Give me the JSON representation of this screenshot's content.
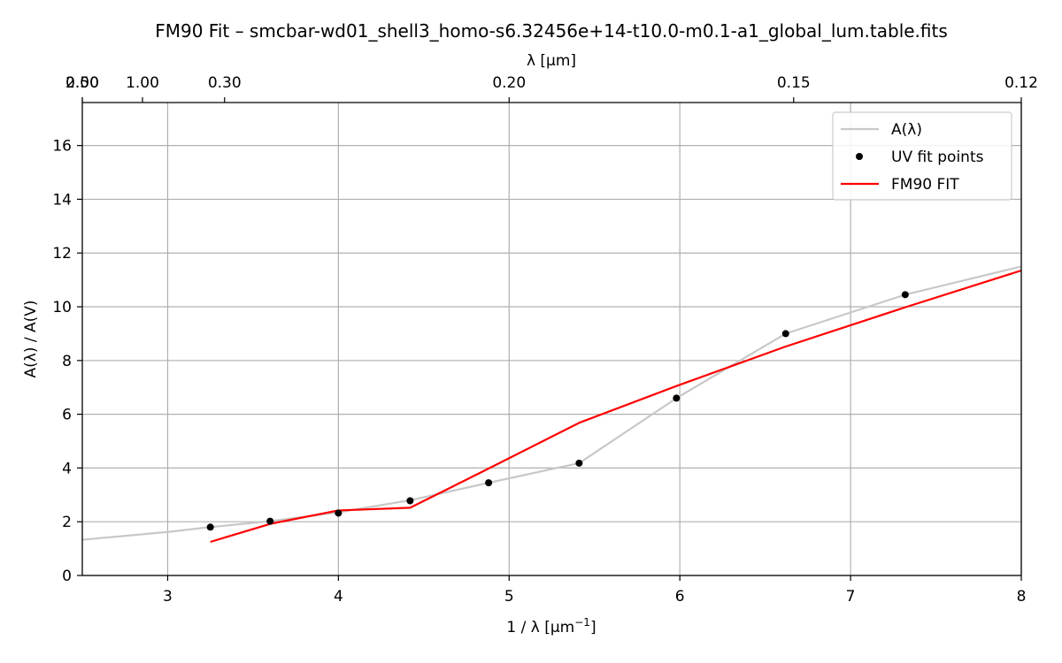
{
  "chart_data": {
    "type": "line",
    "title": "FM90 Fit – smcbar-wd01_shell3_homo-s6.32456e+14-t10.0-m0.1-a1_global_lum.table.fits",
    "xlabel": "1 / λ [μm",
    "xlabel_sup": "−1",
    "xlabel_end": "]",
    "ylabel": "A(λ) / A(V)",
    "top_xlabel": "λ [μm]",
    "xlim": [
      2.5,
      8
    ],
    "ylim": [
      0,
      17.6
    ],
    "x_ticks": [
      3,
      4,
      5,
      6,
      7,
      8
    ],
    "y_ticks": [
      0,
      2,
      4,
      6,
      8,
      10,
      12,
      14,
      16
    ],
    "top_ticks": [
      {
        "label": "2.00",
        "x": 0.5
      },
      {
        "label": "1.00",
        "x": 1.0
      },
      {
        "label": "0.50",
        "x": 2.0
      },
      {
        "label": "0.30",
        "x": 3.3333
      },
      {
        "label": "0.20",
        "x": 5.0
      },
      {
        "label": "0.15",
        "x": 6.6667
      },
      {
        "label": "0.12",
        "x": 8.3333
      }
    ],
    "grid": true,
    "legend_position": "top-right",
    "series": [
      {
        "name": "A(λ)",
        "kind": "line",
        "color": "#c8c8c8",
        "x": [
          2.5,
          3.0,
          3.25,
          3.6,
          4.0,
          4.42,
          4.88,
          5.41,
          5.98,
          6.62,
          7.32,
          8.0
        ],
        "y": [
          1.33,
          1.62,
          1.8,
          2.02,
          2.35,
          2.8,
          3.45,
          4.18,
          6.6,
          9.0,
          10.45,
          11.5
        ]
      },
      {
        "name": "UV fit points",
        "kind": "points",
        "color": "#000000",
        "x": [
          3.25,
          3.6,
          4.0,
          4.42,
          4.88,
          5.41,
          5.98,
          6.62,
          7.32
        ],
        "y": [
          1.8,
          2.02,
          2.32,
          2.78,
          3.45,
          4.18,
          6.6,
          9.0,
          10.45
        ]
      },
      {
        "name": "FM90 FIT",
        "kind": "line",
        "color": "#ff0000",
        "x": [
          3.25,
          3.6,
          4.0,
          4.42,
          4.88,
          5.41,
          5.98,
          6.62,
          7.32,
          8.0
        ],
        "y": [
          1.25,
          1.92,
          2.42,
          2.52,
          3.98,
          5.68,
          7.05,
          8.52,
          9.98,
          11.35
        ]
      }
    ]
  }
}
